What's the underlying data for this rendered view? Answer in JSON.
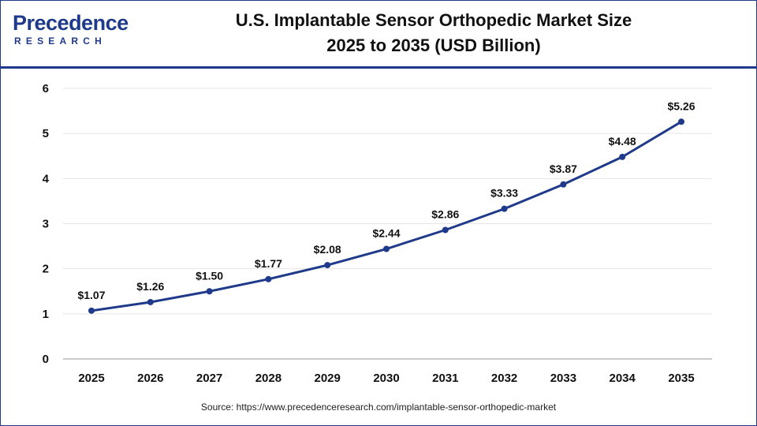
{
  "logo": {
    "name": "Precedence",
    "sub": "RESEARCH"
  },
  "title_line1": "U.S. Implantable Sensor Orthopedic Market Size",
  "title_line2": "2025 to 2035 (USD Billion)",
  "source": "Source: https://www.precedenceresearch.com/implantable-sensor-orthopedic-market",
  "colors": {
    "brand": "#1f3a8a",
    "line": "#1f3a8a",
    "grid": "#e6e6e6",
    "axis": "#9a9a9a",
    "text": "#111111"
  },
  "chart_data": {
    "type": "line",
    "title": "U.S. Implantable Sensor Orthopedic Market Size 2025 to 2035 (USD Billion)",
    "xlabel": "",
    "ylabel": "",
    "categories": [
      "2025",
      "2026",
      "2027",
      "2028",
      "2029",
      "2030",
      "2031",
      "2032",
      "2033",
      "2034",
      "2035"
    ],
    "series": [
      {
        "values": [
          1.07,
          1.26,
          1.5,
          1.77,
          2.08,
          2.44,
          2.86,
          3.33,
          3.87,
          4.48,
          5.26
        ],
        "labels": [
          "$1.07",
          "$1.26",
          "$1.50",
          "$1.77",
          "$2.08",
          "$2.44",
          "$2.86",
          "$3.33",
          "$3.87",
          "$4.48",
          "$5.26"
        ]
      }
    ],
    "ylim": [
      0,
      6
    ],
    "yticks": [
      "0",
      "1",
      "2",
      "3",
      "4",
      "5",
      "6"
    ],
    "grid": true,
    "legend": "none"
  }
}
